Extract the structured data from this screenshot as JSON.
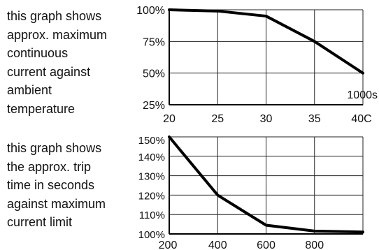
{
  "descriptions": {
    "top": "this graph shows\napprox. maximum\ncontinuous\ncurrent against\nambient\ntemperature",
    "bottom": "this graph shows\nthe approx. trip\ntime in seconds\nagainst maximum\ncurrent limit"
  },
  "chart_data": [
    {
      "type": "line",
      "x": [
        20,
        25,
        30,
        35,
        40
      ],
      "y": [
        100,
        99,
        95,
        75,
        50
      ],
      "xlim": [
        20,
        40
      ],
      "ylim": [
        25,
        100
      ],
      "xticks": [
        "20",
        "25",
        "30",
        "35",
        "40C"
      ],
      "yticks": [
        "100%",
        "75%",
        "50%",
        "25%"
      ],
      "annotation": "1000s",
      "grid": true
    },
    {
      "type": "line",
      "x": [
        200,
        400,
        600,
        800,
        1000
      ],
      "y": [
        150,
        120,
        104.5,
        101.5,
        101
      ],
      "xlim": [
        200,
        1000
      ],
      "ylim": [
        100,
        150
      ],
      "xticks": [
        "200",
        "400",
        "600",
        "800"
      ],
      "yticks": [
        "150%",
        "140%",
        "130%",
        "120%",
        "110%",
        "100%"
      ],
      "grid": true
    }
  ]
}
